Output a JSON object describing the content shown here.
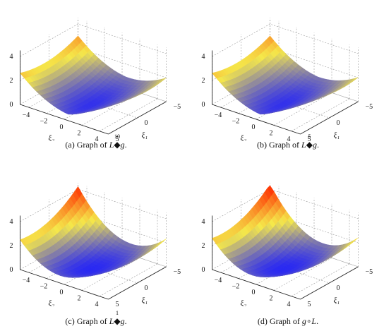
{
  "panels": [
    {
      "id": "a",
      "caption": {
        "prefix": "(a) Graph of ",
        "left": "L",
        "operator": "◆",
        "superscript": "10",
        "right": "g",
        "suffix": "."
      },
      "surface_variant": "asymmetric-a"
    },
    {
      "id": "b",
      "caption": {
        "prefix": "(b) Graph of ",
        "left": "L",
        "operator": "◆",
        "superscript": "5",
        "right": "g",
        "suffix": "."
      },
      "surface_variant": "asymmetric-b"
    },
    {
      "id": "c",
      "caption": {
        "prefix": "(c) Graph of ",
        "left": "L",
        "operator": "◆",
        "superscript": "1",
        "right": "g",
        "suffix": "."
      },
      "surface_variant": "symmetric-c"
    },
    {
      "id": "d",
      "caption": {
        "prefix": "(d) Graph of ",
        "left": "g",
        "operator": "∘",
        "superscript": "",
        "right": "L",
        "suffix": "."
      },
      "surface_variant": "symmetric-d"
    }
  ],
  "axes": {
    "z_ticks": [
      "0",
      "2",
      "4"
    ],
    "x_ticks": [
      "−4",
      "−2",
      "0",
      "2",
      "4"
    ],
    "y_ticks": [
      "5",
      "0",
      "−5"
    ],
    "x_label": "ξ₂",
    "y_label": "ξ₁"
  },
  "colormap": {
    "low": "#1a1aff",
    "mid": "#f5e84a",
    "high": "#ff2a00"
  }
}
